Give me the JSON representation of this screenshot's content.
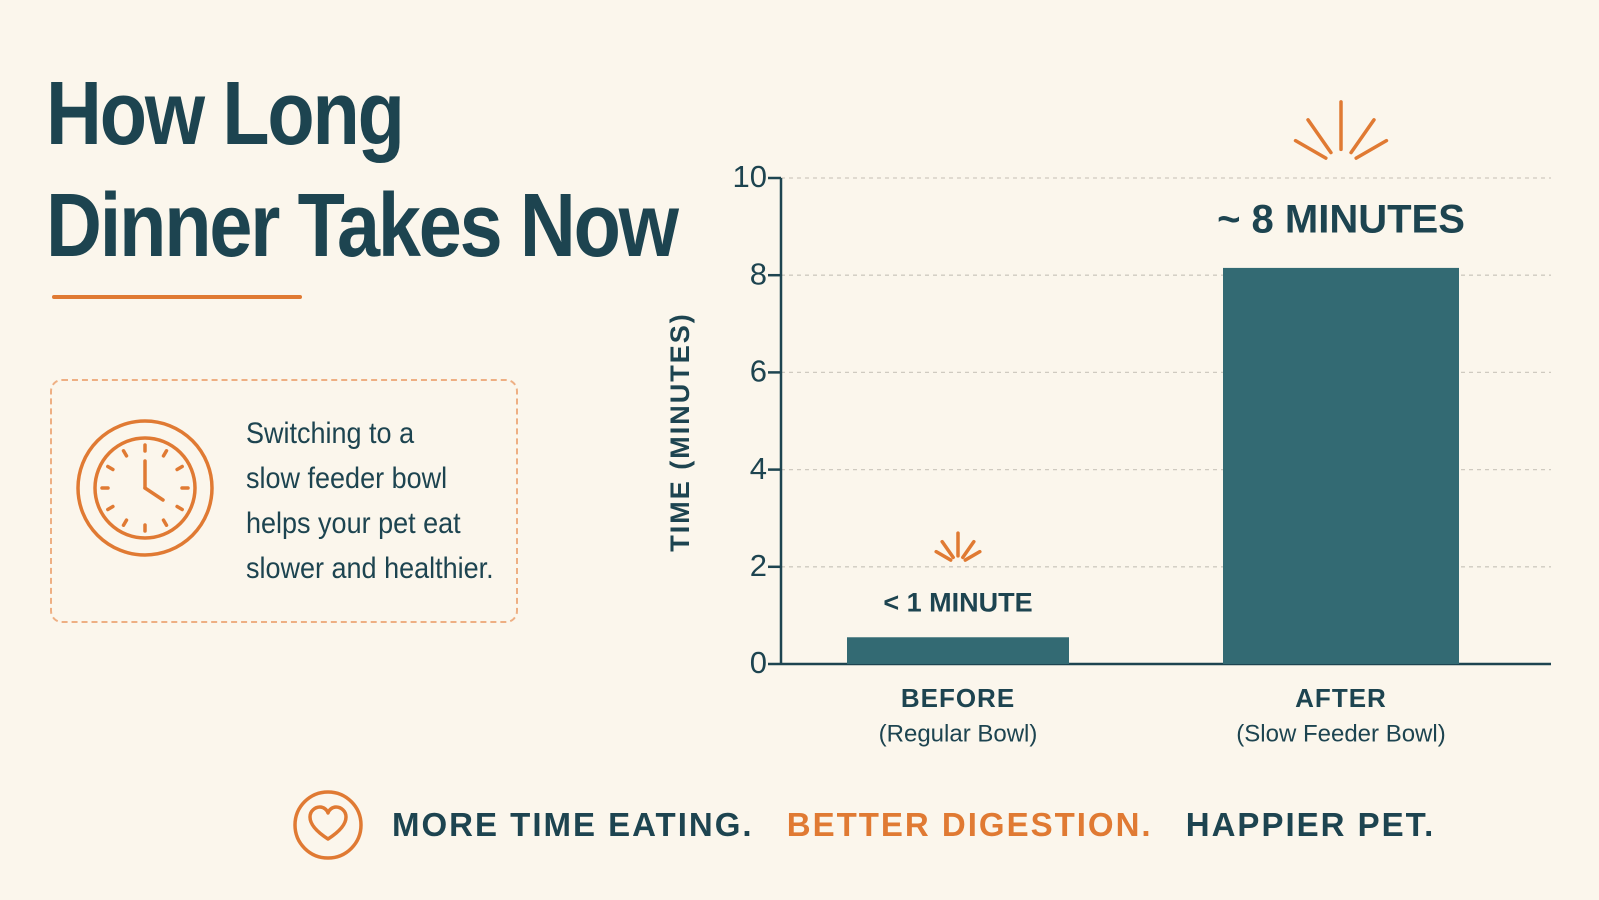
{
  "title": {
    "line1": "How Long",
    "line2": "Dinner Takes Now"
  },
  "info": {
    "icon": "clock-icon",
    "lines": [
      "Switching to a",
      "slow feeder bowl",
      "helps your pet eat",
      "slower and healthier."
    ]
  },
  "colors": {
    "bar": "#336a73",
    "accent": "#e07a33",
    "text": "#1d4450",
    "background": "#fbf6ec"
  },
  "chart_data": {
    "type": "bar",
    "ylabel": "TIME (MINUTES)",
    "ylim": [
      0,
      10
    ],
    "yticks": [
      0,
      2,
      4,
      6,
      8,
      10
    ],
    "grid": true,
    "categories": [
      "BEFORE",
      "AFTER"
    ],
    "category_sublabels": [
      "(Regular Bowl)",
      "(Slow Feeder Bowl)"
    ],
    "values": [
      0.55,
      8.15
    ],
    "data_labels": [
      "< 1 MINUTE",
      "~ 8 MINUTES"
    ]
  },
  "footer": {
    "icon": "heart-icon",
    "phrases": [
      "MORE TIME EATING.",
      "BETTER DIGESTION.",
      "HAPPIER PET."
    ]
  }
}
